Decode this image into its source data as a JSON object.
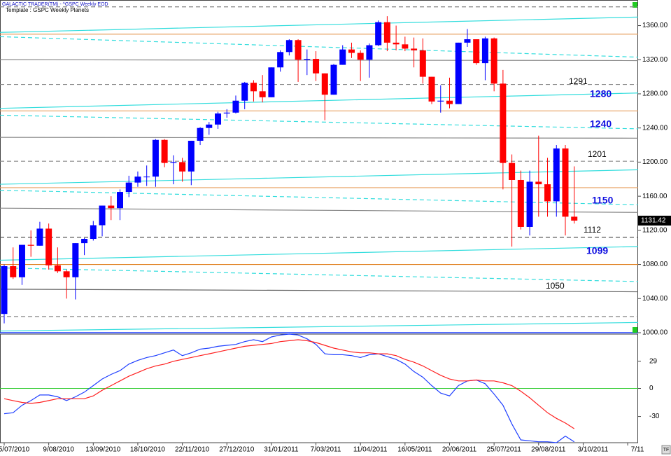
{
  "chart_data": [
    {
      "type": "candlestick",
      "header": "GALACTIC TRADER(TM) - ^GSPC Weekly EOD",
      "template": "Template : GSPC Weekly Planets",
      "corner_label": "TF",
      "up_color": "#0000ff",
      "down_color": "#ff0000",
      "categories": [
        "5/07/2010",
        null,
        null,
        null,
        null,
        "9/08/2010",
        null,
        null,
        null,
        null,
        "13/09/2010",
        null,
        null,
        null,
        null,
        "18/10/2010",
        null,
        null,
        null,
        null,
        "22/11/2010",
        null,
        null,
        null,
        null,
        "27/12/2010",
        null,
        null,
        null,
        null,
        "31/01/2011",
        null,
        null,
        null,
        null,
        "7/03/2011",
        null,
        null,
        null,
        null,
        "11/04/2011",
        null,
        null,
        null,
        null,
        "16/05/2011",
        null,
        null,
        null,
        null,
        "20/06/2011",
        null,
        null,
        null,
        null,
        "25/07/2011",
        null,
        null,
        null,
        null,
        "29/08/2011",
        null,
        null,
        null,
        null,
        "3/10/2011",
        null,
        null,
        null,
        null,
        "7/11"
      ],
      "open": [
        1022,
        1078,
        1065,
        1103,
        1102,
        1122,
        1079,
        1072,
        1065,
        1105,
        1110,
        1126,
        1149,
        1146,
        1165,
        1176,
        1183,
        1183,
        1226,
        1199,
        1200,
        1189,
        1225,
        1240,
        1244,
        1257,
        1258,
        1272,
        1293,
        1283,
        1276,
        1311,
        1329,
        1343,
        1320,
        1321,
        1304,
        1279,
        1314,
        1332,
        1328,
        1320,
        1337,
        1364,
        1340,
        1338,
        1333,
        1331,
        1300,
        1271,
        1272,
        1268,
        1340,
        1344,
        1316,
        1345,
        1292,
        1199,
        1179,
        1124,
        1177,
        1174,
        1154,
        1216,
        1136,
        null,
        null,
        null,
        null,
        null,
        null
      ],
      "high": [
        1080,
        1100,
        1103,
        1120,
        1130,
        1128,
        1100,
        1074,
        1105,
        1111,
        1131,
        1149,
        1160,
        1168,
        1184,
        1189,
        1196,
        1227,
        1227,
        1208,
        1205,
        1225,
        1241,
        1247,
        1259,
        1262,
        1278,
        1294,
        1296,
        1302,
        1311,
        1331,
        1344,
        1344,
        1332,
        1330,
        1304,
        1315,
        1337,
        1340,
        1331,
        1339,
        1366,
        1371,
        1360,
        1347,
        1346,
        1345,
        1300,
        1290,
        1299,
        1340,
        1356,
        1344,
        1347,
        1346,
        1308,
        1209,
        1190,
        1190,
        1231,
        1205,
        1220,
        1220,
        1195,
        null,
        null,
        null,
        null,
        null,
        null
      ],
      "low": [
        1011,
        1063,
        1056,
        1089,
        1102,
        1074,
        1070,
        1040,
        1039,
        1091,
        1108,
        1113,
        1132,
        1132,
        1159,
        1171,
        1172,
        1171,
        1194,
        1174,
        1177,
        1173,
        1220,
        1232,
        1239,
        1252,
        1257,
        1262,
        1271,
        1270,
        1276,
        1306,
        1325,
        1294,
        1302,
        1295,
        1249,
        1279,
        1314,
        1322,
        1295,
        1299,
        1336,
        1330,
        1331,
        1330,
        1311,
        1292,
        1268,
        1258,
        1263,
        1268,
        1335,
        1314,
        1296,
        1283,
        1168,
        1101,
        1121,
        1114,
        1136,
        1136,
        1136,
        1114,
        1128,
        null,
        null,
        null,
        null,
        null,
        null
      ],
      "close": [
        1078,
        1065,
        1103,
        1102,
        1122,
        1079,
        1072,
        1065,
        1105,
        1110,
        1126,
        1149,
        1146,
        1165,
        1176,
        1183,
        1183,
        1226,
        1199,
        1200,
        1189,
        1225,
        1240,
        1244,
        1257,
        1258,
        1272,
        1293,
        1283,
        1276,
        1311,
        1329,
        1343,
        1320,
        1321,
        1304,
        1279,
        1314,
        1332,
        1328,
        1320,
        1337,
        1364,
        1340,
        1338,
        1333,
        1331,
        1300,
        1271,
        1272,
        1268,
        1340,
        1344,
        1316,
        1345,
        1292,
        1199,
        1179,
        1124,
        1177,
        1174,
        1154,
        1216,
        1136,
        1131.42,
        null,
        null,
        null,
        null,
        null,
        null
      ],
      "ylim": [
        1000,
        1390
      ],
      "yticks": [
        {
          "value": 1000,
          "label": "1000.00"
        },
        {
          "value": 1040,
          "label": "1040.00"
        },
        {
          "value": 1080,
          "label": "1080.00"
        },
        {
          "value": 1120,
          "label": "1120.00"
        },
        {
          "value": 1160,
          "label": "1160.00"
        },
        {
          "value": 1200,
          "label": "1200.00"
        },
        {
          "value": 1240,
          "label": "1240.00"
        },
        {
          "value": 1280,
          "label": "1280.00"
        },
        {
          "value": 1320,
          "label": "1320.00"
        },
        {
          "value": 1360,
          "label": "1360.00"
        }
      ],
      "levels": [
        {
          "start": 1382,
          "end": 1382,
          "color": "#888888",
          "dash": true
        },
        {
          "start": 1352,
          "end": 1370,
          "color": "#33dddd",
          "dash": false
        },
        {
          "start": 1350,
          "end": 1350,
          "color": "#e8a060",
          "dash": false
        },
        {
          "start": 1347,
          "end": 1323,
          "color": "#33dddd",
          "dash": true
        },
        {
          "start": 1320,
          "end": 1319,
          "color": "#888888",
          "dash": false
        },
        {
          "start": 1291,
          "end": 1291,
          "color": "#888888",
          "dash": true
        },
        {
          "start": 1263,
          "end": 1281,
          "color": "#33dddd",
          "dash": false
        },
        {
          "start": 1260,
          "end": 1260,
          "color": "#e8a060",
          "dash": false
        },
        {
          "start": 1255,
          "end": 1239,
          "color": "#33dddd",
          "dash": true
        },
        {
          "start": 1229,
          "end": 1228,
          "color": "#888888",
          "dash": false
        },
        {
          "start": 1201,
          "end": 1201,
          "color": "#888888",
          "dash": true
        },
        {
          "start": 1174,
          "end": 1191,
          "color": "#33dddd",
          "dash": false
        },
        {
          "start": 1170,
          "end": 1170,
          "color": "#e8a060",
          "dash": false
        },
        {
          "start": 1167,
          "end": 1150,
          "color": "#33dddd",
          "dash": true
        },
        {
          "start": 1146,
          "end": 1141,
          "color": "#888888",
          "dash": false
        },
        {
          "start": 1112,
          "end": 1112,
          "color": "#555555",
          "dash": true
        },
        {
          "start": 1085,
          "end": 1101,
          "color": "#33dddd",
          "dash": false
        },
        {
          "start": 1080,
          "end": 1080,
          "color": "#e08020",
          "dash": false
        },
        {
          "start": 1076,
          "end": 1060,
          "color": "#33dddd",
          "dash": true
        },
        {
          "start": 1051,
          "end": 1048,
          "color": "#666666",
          "dash": false
        },
        {
          "start": 1019,
          "end": 1019,
          "color": "#888888",
          "dash": true
        },
        {
          "start": 1002,
          "end": 1012,
          "color": "#33dddd",
          "dash": false
        }
      ],
      "annotations": [
        {
          "text": "1291",
          "color": "#000000",
          "bold": false
        },
        {
          "text": "1280",
          "color": "#1010e0",
          "bold": true
        },
        {
          "text": "1240",
          "color": "#1010e0",
          "bold": true
        },
        {
          "text": "1201",
          "color": "#000000",
          "bold": false
        },
        {
          "text": "1150",
          "color": "#1010e0",
          "bold": true
        },
        {
          "text": "1112",
          "color": "#000000",
          "bold": false
        },
        {
          "text": "1099",
          "color": "#1010e0",
          "bold": true
        },
        {
          "text": "1050",
          "color": "#000000",
          "bold": false
        }
      ]
    },
    {
      "type": "line",
      "ylim": [
        -58,
        58
      ],
      "yticks": [
        29,
        0,
        -30
      ],
      "hline": 0,
      "hline_color": "#33cc33",
      "series": [
        {
          "color": "#2040ff",
          "values": [
            -27,
            -26,
            -18,
            -13,
            -7,
            -7,
            -9,
            -13,
            -9,
            -4,
            3,
            10,
            15,
            19,
            26,
            30,
            33,
            35,
            38,
            41,
            35,
            38,
            42,
            43,
            45,
            46,
            47,
            50,
            52,
            50,
            55,
            57,
            58,
            57,
            53,
            47,
            37,
            36,
            36,
            35,
            33,
            36,
            37,
            34,
            31,
            26,
            18,
            12,
            3,
            -5,
            -8,
            3,
            8,
            9,
            5,
            -6,
            -18,
            -38,
            -55,
            -56,
            -57,
            -57,
            -58,
            -51,
            -57,
            null,
            null,
            null,
            null,
            null,
            null
          ]
        },
        {
          "color": "#ff2020",
          "values": [
            -11,
            -13,
            -15,
            -16,
            -15,
            -13,
            -11,
            -11,
            -11,
            -11,
            -8,
            -2,
            3,
            8,
            13,
            17,
            21,
            24,
            26,
            29,
            31,
            33,
            35,
            37,
            39,
            41,
            43,
            45,
            46,
            47,
            48,
            50,
            51,
            52,
            51,
            49,
            46,
            43,
            41,
            39,
            38,
            38,
            37,
            37,
            35,
            31,
            28,
            24,
            19,
            14,
            10,
            8,
            8,
            9,
            8,
            8,
            6,
            3,
            -3,
            -10,
            -18,
            -26,
            -32,
            -37,
            -43,
            null,
            null,
            null,
            null,
            null,
            null
          ]
        }
      ]
    }
  ]
}
